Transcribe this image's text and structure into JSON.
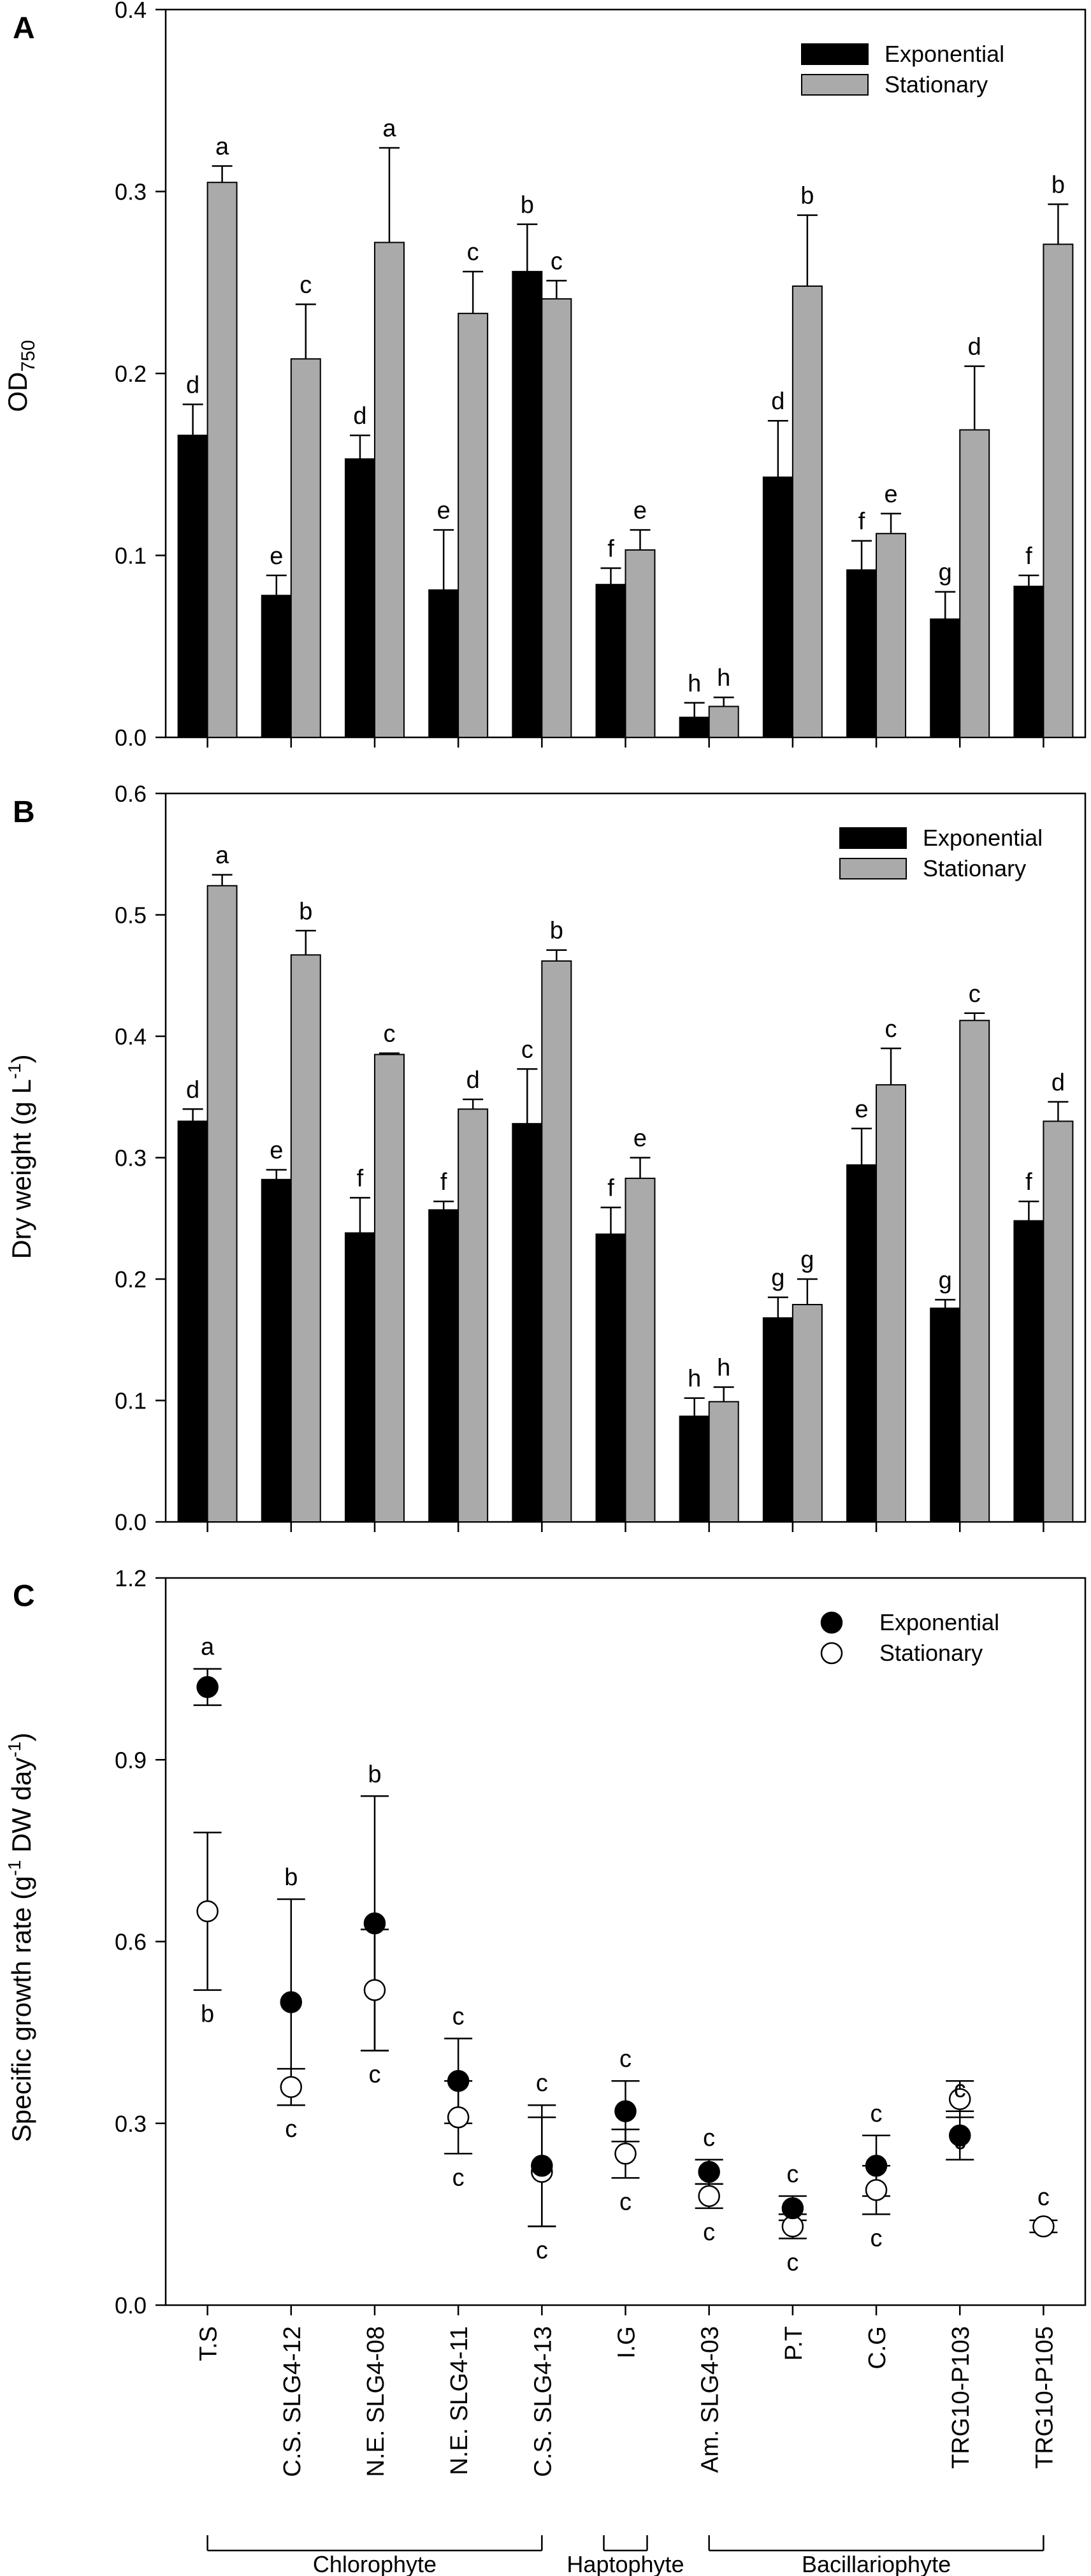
{
  "chart_data": [
    {
      "panel": "A",
      "type": "bar",
      "ylabel": "OD",
      "ylabel_sub": "750",
      "ylim": [
        0,
        0.4
      ],
      "yticks": [
        "0.0",
        "0.1",
        "0.2",
        "0.3",
        "0.4"
      ],
      "legend_position": "top-right",
      "categories": [
        "T.S",
        "C.S. SLG4-12",
        "N.E. SLG4-08",
        "N.E. SLG4-11",
        "C.S. SLG4-13",
        "I.G",
        "Am. SLG4-03",
        "P.T",
        "C.G",
        "TRG10-P103",
        "TRG10-P105"
      ],
      "series": [
        {
          "name": "Exponential",
          "color": "#000000",
          "values": [
            0.166,
            0.078,
            0.153,
            0.081,
            0.256,
            0.084,
            0.011,
            0.143,
            0.092,
            0.065,
            0.083
          ],
          "errors": [
            0.017,
            0.011,
            0.013,
            0.033,
            0.026,
            0.009,
            0.008,
            0.031,
            0.016,
            0.015,
            0.006
          ],
          "letters": [
            "d",
            "e",
            "d",
            "e",
            "b",
            "f",
            "h",
            "d",
            "f",
            "g",
            "f"
          ]
        },
        {
          "name": "Stationary",
          "color": "#aaaaaa",
          "values": [
            0.305,
            0.208,
            0.272,
            0.233,
            0.241,
            0.103,
            0.017,
            0.248,
            0.112,
            0.169,
            0.271
          ],
          "errors": [
            0.009,
            0.03,
            0.052,
            0.023,
            0.01,
            0.011,
            0.005,
            0.039,
            0.011,
            0.035,
            0.022
          ],
          "letters": [
            "a",
            "c",
            "a",
            "c",
            "c",
            "e",
            "h",
            "b",
            "e",
            "d",
            "b"
          ]
        }
      ]
    },
    {
      "panel": "B",
      "type": "bar",
      "ylabel": "Dry weight (g L",
      "ylabel_sup": "-1",
      "ylabel_end": ")",
      "ylim": [
        0,
        0.6
      ],
      "yticks": [
        "0.0",
        "0.1",
        "0.2",
        "0.3",
        "0.4",
        "0.5",
        "0.6"
      ],
      "legend_position": "top-right",
      "categories": [
        "T.S",
        "C.S. SLG4-12",
        "N.E. SLG4-08",
        "N.E. SLG4-11",
        "C.S. SLG4-13",
        "I.G",
        "Am. SLG4-03",
        "P.T",
        "C.G",
        "TRG10-P103",
        "TRG10-P105"
      ],
      "series": [
        {
          "name": "Exponential",
          "color": "#000000",
          "values": [
            0.33,
            0.282,
            0.238,
            0.257,
            0.328,
            0.237,
            0.087,
            0.168,
            0.294,
            0.176,
            0.248
          ],
          "errors": [
            0.01,
            0.008,
            0.029,
            0.007,
            0.045,
            0.022,
            0.015,
            0.017,
            0.03,
            0.007,
            0.016
          ],
          "letters": [
            "d",
            "e",
            "f",
            "f",
            "c",
            "f",
            "h",
            "g",
            "e",
            "g",
            "f"
          ]
        },
        {
          "name": "Stationary",
          "color": "#aaaaaa",
          "values": [
            0.524,
            0.467,
            0.385,
            0.34,
            0.462,
            0.283,
            0.099,
            0.179,
            0.36,
            0.413,
            0.33
          ],
          "errors": [
            0.009,
            0.02,
            0.001,
            0.008,
            0.009,
            0.017,
            0.012,
            0.021,
            0.03,
            0.006,
            0.016
          ],
          "letters": [
            "a",
            "b",
            "c",
            "d",
            "b",
            "e",
            "h",
            "g",
            "c",
            "c",
            "d"
          ]
        }
      ]
    },
    {
      "panel": "C",
      "type": "scatter",
      "ylabel": "Specific growth rate (g",
      "ylabel_sup1": "-1",
      "ylabel_mid": " DW day",
      "ylabel_sup2": "-1",
      "ylabel_end": ")",
      "ylim": [
        0,
        1.2
      ],
      "yticks": [
        "0.0",
        "0.3",
        "0.6",
        "0.9",
        "1.2"
      ],
      "legend_position": "top-right",
      "categories": [
        "T.S",
        "C.S. SLG4-12",
        "N.E. SLG4-08",
        "N.E. SLG4-11",
        "C.S. SLG4-13",
        "I.G",
        "Am. SLG4-03",
        "P.T",
        "C.G",
        "TRG10-P103",
        "TRG10-P105"
      ],
      "series": [
        {
          "name": "Exponential",
          "color": "#000000",
          "marker": "filled-circle",
          "values": [
            1.02,
            0.5,
            0.63,
            0.37,
            0.23,
            0.32,
            0.22,
            0.16,
            0.23,
            0.28,
            null
          ],
          "errors": [
            0.03,
            0.17,
            0.21,
            0.07,
            0.1,
            0.05,
            0.02,
            0.02,
            0.05,
            0.04,
            null
          ],
          "letters": [
            "a",
            "b",
            "b",
            "c",
            "c",
            "c",
            "c",
            "c",
            "c",
            "c",
            ""
          ]
        },
        {
          "name": "Stationary",
          "color": "#ffffff",
          "marker": "open-circle",
          "values": [
            0.65,
            0.36,
            0.52,
            0.31,
            0.22,
            0.25,
            0.18,
            0.13,
            0.19,
            0.34,
            0.13
          ],
          "errors": [
            0.13,
            0.03,
            0.1,
            0.06,
            0.09,
            0.04,
            0.02,
            0.02,
            0.04,
            0.03,
            0.01
          ],
          "letters": [
            "b",
            "c",
            "c",
            "c",
            "c",
            "c",
            "c",
            "c",
            "c",
            "c",
            "c"
          ]
        }
      ]
    }
  ],
  "groups": [
    {
      "label": "Chlorophyte",
      "from": 0,
      "to": 4
    },
    {
      "label": "Haptophyte",
      "from": 5,
      "to": 5
    },
    {
      "label": "Bacillariophyte",
      "from": 6,
      "to": 10
    }
  ]
}
